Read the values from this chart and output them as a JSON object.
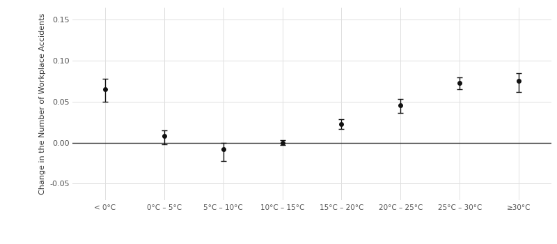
{
  "categories": [
    "< 0°C",
    "0°C – 5°C",
    "5°C – 10°C",
    "10°C – 15°C",
    "15°C – 20°C",
    "20°C – 25°C",
    "25°C – 30°C",
    "≥30°C"
  ],
  "values": [
    0.065,
    0.008,
    -0.008,
    0.0,
    0.023,
    0.046,
    0.073,
    0.075
  ],
  "ci_lower": [
    0.05,
    -0.002,
    -0.022,
    -0.003,
    0.017,
    0.036,
    0.065,
    0.062
  ],
  "ci_upper": [
    0.078,
    0.015,
    0.0,
    0.003,
    0.029,
    0.053,
    0.08,
    0.085
  ],
  "ylabel": "Change in the Number of Workplace Accidents",
  "ylim": [
    -0.07,
    0.165
  ],
  "yticks": [
    -0.05,
    0.0,
    0.05,
    0.1,
    0.15
  ],
  "background_color": "#ffffff",
  "grid_color": "#e0e0e0",
  "marker_color": "#111111",
  "hline_color": "#333333",
  "marker_size": 4,
  "capsize": 3,
  "elinewidth": 1.0,
  "capthick": 1.0,
  "ylabel_fontsize": 8,
  "tick_fontsize": 8,
  "xtick_fontsize": 7.5
}
